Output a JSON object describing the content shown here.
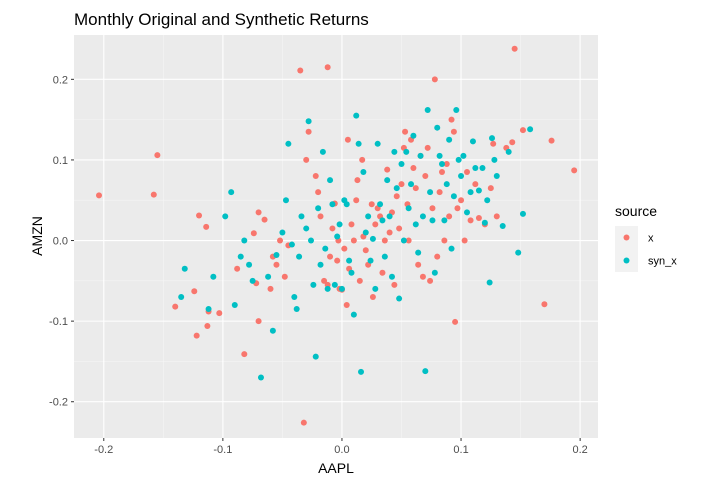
{
  "chart_data": {
    "type": "scatter",
    "title": "Monthly Original and Synthetic Returns",
    "xlabel": "AAPL",
    "ylabel": "AMZN",
    "xlim": [
      -0.225,
      0.215
    ],
    "ylim": [
      -0.245,
      0.255
    ],
    "x_ticks": [
      -0.2,
      -0.1,
      0.0,
      0.1,
      0.2
    ],
    "x_tick_labels": [
      "-0.2",
      "-0.1",
      "0.0",
      "0.1",
      "0.2"
    ],
    "y_ticks": [
      -0.2,
      -0.1,
      0.0,
      0.1,
      0.2
    ],
    "y_tick_labels": [
      "-0.2",
      "-0.1",
      "0.0",
      "0.1",
      "0.2"
    ],
    "grid": true,
    "legend": {
      "title": "source",
      "position": "right"
    },
    "series": [
      {
        "name": "x",
        "color": "#F8766D",
        "points": [
          [
            -0.204,
            0.056
          ],
          [
            -0.155,
            0.106
          ],
          [
            -0.158,
            0.057
          ],
          [
            -0.14,
            -0.082
          ],
          [
            -0.12,
            0.031
          ],
          [
            -0.124,
            -0.063
          ],
          [
            -0.112,
            -0.088
          ],
          [
            -0.103,
            -0.09
          ],
          [
            -0.122,
            -0.118
          ],
          [
            -0.113,
            -0.106
          ],
          [
            -0.114,
            0.017
          ],
          [
            -0.088,
            -0.035
          ],
          [
            -0.082,
            -0.141
          ],
          [
            -0.074,
            0.009
          ],
          [
            -0.072,
            -0.053
          ],
          [
            -0.07,
            0.035
          ],
          [
            -0.065,
            0.026
          ],
          [
            -0.06,
            -0.06
          ],
          [
            -0.058,
            -0.02
          ],
          [
            -0.055,
            -0.03
          ],
          [
            -0.052,
            0.0
          ],
          [
            -0.048,
            -0.045
          ],
          [
            -0.045,
            -0.006
          ],
          [
            -0.07,
            -0.1
          ],
          [
            -0.035,
            0.211
          ],
          [
            -0.012,
            0.215
          ],
          [
            -0.032,
            -0.226
          ],
          [
            -0.028,
            0.135
          ],
          [
            -0.03,
            0.1
          ],
          [
            -0.022,
            0.08
          ],
          [
            -0.02,
            0.06
          ],
          [
            -0.018,
            0.03
          ],
          [
            -0.015,
            -0.05
          ],
          [
            -0.012,
            -0.055
          ],
          [
            -0.01,
            -0.02
          ],
          [
            -0.008,
            0.015
          ],
          [
            -0.006,
            0.046
          ],
          [
            -0.004,
            -0.025
          ],
          [
            -0.003,
            0.0
          ],
          [
            -0.002,
            -0.06
          ],
          [
            0.0,
            -0.061
          ],
          [
            0.002,
            -0.01
          ],
          [
            0.004,
            -0.08
          ],
          [
            0.005,
            0.125
          ],
          [
            0.006,
            -0.035
          ],
          [
            0.008,
            0.02
          ],
          [
            0.01,
            -0.0
          ],
          [
            0.012,
            0.05
          ],
          [
            0.013,
            0.075
          ],
          [
            0.015,
            -0.05
          ],
          [
            0.017,
            0.1
          ],
          [
            0.018,
            0.005
          ],
          [
            0.02,
            -0.012
          ],
          [
            0.022,
            -0.03
          ],
          [
            0.025,
            0.045
          ],
          [
            0.026,
            -0.07
          ],
          [
            0.028,
            0.02
          ],
          [
            0.03,
            0.04
          ],
          [
            0.032,
            0.03
          ],
          [
            0.034,
            -0.04
          ],
          [
            0.036,
            0.0
          ],
          [
            0.038,
            0.088
          ],
          [
            0.04,
            0.01
          ],
          [
            0.042,
            0.035
          ],
          [
            0.044,
            -0.055
          ],
          [
            0.046,
            0.055
          ],
          [
            0.048,
            0.015
          ],
          [
            0.05,
            0.07
          ],
          [
            0.052,
            0.115
          ],
          [
            0.053,
            0.135
          ],
          [
            0.055,
            0.045
          ],
          [
            0.056,
            0.0
          ],
          [
            0.058,
            0.125
          ],
          [
            0.06,
            0.09
          ],
          [
            0.062,
            0.065
          ],
          [
            0.064,
            -0.03
          ],
          [
            0.066,
            0.105
          ],
          [
            0.068,
            -0.045
          ],
          [
            0.07,
            0.08
          ],
          [
            0.072,
            0.115
          ],
          [
            0.074,
            -0.05
          ],
          [
            0.076,
            0.04
          ],
          [
            0.078,
            0.2
          ],
          [
            0.08,
            -0.02
          ],
          [
            0.082,
            0.06
          ],
          [
            0.084,
            0.085
          ],
          [
            0.086,
            0.0
          ],
          [
            0.088,
            0.095
          ],
          [
            0.09,
            0.03
          ],
          [
            0.092,
            0.15
          ],
          [
            0.094,
            0.135
          ],
          [
            0.095,
            -0.101
          ],
          [
            0.097,
            0.04
          ],
          [
            0.1,
            0.05
          ],
          [
            0.103,
            0.0
          ],
          [
            0.105,
            0.085
          ],
          [
            0.108,
            0.025
          ],
          [
            0.112,
            0.07
          ],
          [
            0.115,
            0.028
          ],
          [
            0.12,
            0.02
          ],
          [
            0.125,
            0.065
          ],
          [
            0.127,
            0.12
          ],
          [
            0.13,
            0.03
          ],
          [
            0.138,
            0.115
          ],
          [
            0.143,
            0.122
          ],
          [
            0.145,
            0.238
          ],
          [
            0.152,
            0.137
          ],
          [
            0.17,
            -0.079
          ],
          [
            0.176,
            0.124
          ],
          [
            0.195,
            0.087
          ]
        ]
      },
      {
        "name": "syn_x",
        "color": "#00BFC4",
        "points": [
          [
            -0.132,
            -0.035
          ],
          [
            -0.135,
            -0.07
          ],
          [
            -0.112,
            -0.085
          ],
          [
            -0.108,
            -0.045
          ],
          [
            -0.098,
            0.03
          ],
          [
            -0.093,
            0.06
          ],
          [
            -0.09,
            -0.08
          ],
          [
            -0.085,
            -0.02
          ],
          [
            -0.082,
            0.0
          ],
          [
            -0.078,
            -0.03
          ],
          [
            -0.075,
            -0.05
          ],
          [
            -0.068,
            -0.17
          ],
          [
            -0.062,
            -0.045
          ],
          [
            -0.058,
            -0.112
          ],
          [
            -0.055,
            -0.018
          ],
          [
            -0.05,
            0.01
          ],
          [
            -0.047,
            0.05
          ],
          [
            -0.045,
            0.12
          ],
          [
            -0.042,
            -0.005
          ],
          [
            -0.04,
            -0.07
          ],
          [
            -0.038,
            -0.085
          ],
          [
            -0.036,
            -0.02
          ],
          [
            -0.034,
            0.03
          ],
          [
            -0.03,
            0.015
          ],
          [
            -0.028,
            0.148
          ],
          [
            -0.026,
            0.0
          ],
          [
            -0.024,
            -0.055
          ],
          [
            -0.022,
            -0.144
          ],
          [
            -0.02,
            0.04
          ],
          [
            -0.018,
            -0.03
          ],
          [
            -0.016,
            0.11
          ],
          [
            -0.014,
            -0.01
          ],
          [
            -0.012,
            -0.06
          ],
          [
            -0.01,
            0.075
          ],
          [
            -0.008,
            0.045
          ],
          [
            -0.006,
            -0.055
          ],
          [
            -0.004,
            0.005
          ],
          [
            -0.002,
            0.02
          ],
          [
            0.0,
            -0.06
          ],
          [
            0.002,
            0.05
          ],
          [
            0.004,
            0.045
          ],
          [
            0.006,
            -0.025
          ],
          [
            0.008,
            -0.04
          ],
          [
            0.01,
            -0.092
          ],
          [
            0.012,
            0.155
          ],
          [
            0.014,
            0.12
          ],
          [
            0.016,
            -0.163
          ],
          [
            0.018,
            0.085
          ],
          [
            0.02,
            0.01
          ],
          [
            0.022,
            0.03
          ],
          [
            0.024,
            -0.025
          ],
          [
            0.026,
            0.002
          ],
          [
            0.028,
            -0.06
          ],
          [
            0.03,
            0.12
          ],
          [
            0.032,
            0.045
          ],
          [
            0.034,
            0.025
          ],
          [
            0.036,
            -0.02
          ],
          [
            0.038,
            0.075
          ],
          [
            0.04,
            0.03
          ],
          [
            0.042,
            -0.045
          ],
          [
            0.044,
            0.11
          ],
          [
            0.046,
            0.065
          ],
          [
            0.048,
            -0.072
          ],
          [
            0.05,
            0.095
          ],
          [
            0.052,
            0.0
          ],
          [
            0.054,
            0.11
          ],
          [
            0.056,
            0.04
          ],
          [
            0.058,
            0.07
          ],
          [
            0.06,
            0.13
          ],
          [
            0.062,
            0.02
          ],
          [
            0.064,
            -0.015
          ],
          [
            0.066,
            0.105
          ],
          [
            0.068,
            0.03
          ],
          [
            0.07,
            -0.162
          ],
          [
            0.072,
            0.162
          ],
          [
            0.074,
            0.06
          ],
          [
            0.076,
            0.025
          ],
          [
            0.078,
            -0.04
          ],
          [
            0.08,
            0.14
          ],
          [
            0.082,
            0.105
          ],
          [
            0.084,
            0.095
          ],
          [
            0.086,
            0.025
          ],
          [
            0.088,
            0.07
          ],
          [
            0.09,
            0.125
          ],
          [
            0.092,
            -0.01
          ],
          [
            0.094,
            0.055
          ],
          [
            0.096,
            0.162
          ],
          [
            0.098,
            0.1
          ],
          [
            0.1,
            0.08
          ],
          [
            0.102,
            0.105
          ],
          [
            0.105,
            0.035
          ],
          [
            0.108,
            0.06
          ],
          [
            0.11,
            0.123
          ],
          [
            0.112,
            0.09
          ],
          [
            0.115,
            0.062
          ],
          [
            0.118,
            0.09
          ],
          [
            0.12,
            0.022
          ],
          [
            0.122,
            0.05
          ],
          [
            0.124,
            -0.052
          ],
          [
            0.126,
            0.127
          ],
          [
            0.128,
            0.1
          ],
          [
            0.13,
            0.08
          ],
          [
            0.135,
            0.018
          ],
          [
            0.14,
            0.11
          ],
          [
            0.148,
            -0.015
          ],
          [
            0.152,
            0.033
          ],
          [
            0.158,
            0.138
          ]
        ]
      }
    ]
  }
}
